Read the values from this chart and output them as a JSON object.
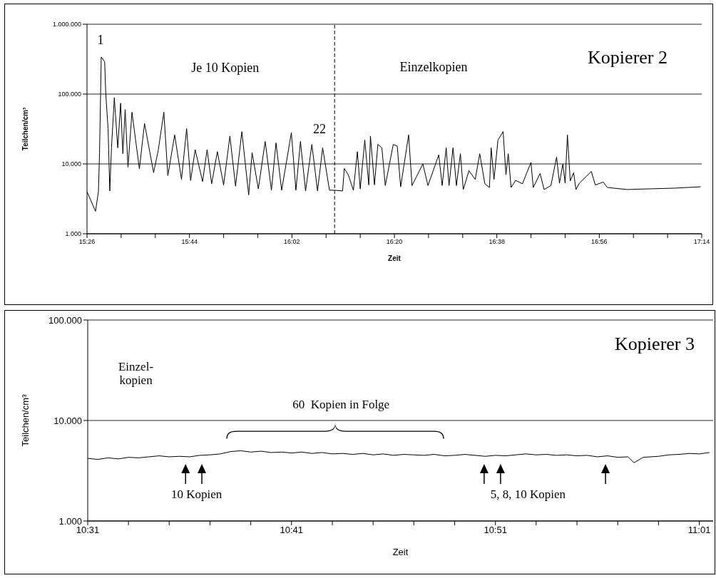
{
  "chart_data": [
    {
      "type": "line",
      "title": "Kopierer 2",
      "xlabel": "Zeit",
      "ylabel": "Teilchen/cm³",
      "color": "#000000",
      "log": "y",
      "grid": "y",
      "xlim": [
        15.4333,
        17.2333
      ],
      "xticks": [
        {
          "value": 15.4333,
          "label": "15:26"
        },
        {
          "value": 15.5333,
          "label": null
        },
        {
          "value": 15.6333,
          "label": null
        },
        {
          "value": 15.7333,
          "label": "15:44"
        },
        {
          "value": 15.8333,
          "label": null
        },
        {
          "value": 15.9333,
          "label": null
        },
        {
          "value": 16.0333,
          "label": "16:02"
        },
        {
          "value": 16.1333,
          "label": null
        },
        {
          "value": 16.2333,
          "label": null
        },
        {
          "value": 16.3333,
          "label": "16:20"
        },
        {
          "value": 16.4333,
          "label": null
        },
        {
          "value": 16.5333,
          "label": null
        },
        {
          "value": 16.6333,
          "label": "16:38"
        },
        {
          "value": 16.7333,
          "label": null
        },
        {
          "value": 16.8333,
          "label": null
        },
        {
          "value": 16.9333,
          "label": "16:56"
        },
        {
          "value": 17.0333,
          "label": null
        },
        {
          "value": 17.1333,
          "label": null
        },
        {
          "value": 17.2333,
          "label": "17:14"
        }
      ],
      "ylim": [
        1000,
        1000000
      ],
      "yticks": [
        {
          "value": 1000,
          "label": "1.000"
        },
        {
          "value": 10000,
          "label": "10.000"
        },
        {
          "value": 100000,
          "label": "100.000"
        },
        {
          "value": 1000000,
          "label": "1.000.000"
        }
      ],
      "ref_lines": [
        {
          "axis": "x",
          "value": 16.1583,
          "line_style": "dashed",
          "color": "#000000"
        }
      ],
      "annotations": [
        "1",
        "Je 10 Kopien",
        "22",
        "Einzelkopien"
      ],
      "x": [
        15.4333,
        15.4583,
        15.4667,
        15.47,
        15.475,
        15.485,
        15.4883,
        15.495,
        15.5,
        15.505,
        15.5133,
        15.5233,
        15.5317,
        15.5383,
        15.545,
        15.5533,
        15.565,
        15.5767,
        15.5867,
        15.6017,
        15.6283,
        15.6417,
        15.6583,
        15.67,
        15.69,
        15.71,
        15.725,
        15.7367,
        15.75,
        15.7717,
        15.785,
        15.7983,
        15.815,
        15.8333,
        15.8517,
        15.8683,
        15.8867,
        15.9067,
        15.9167,
        15.935,
        15.955,
        15.9733,
        15.9867,
        16.0033,
        16.0317,
        16.045,
        16.0583,
        16.0733,
        16.0917,
        16.1083,
        16.1233,
        16.1433,
        16.1583,
        16.1817,
        16.1867,
        16.1983,
        16.2133,
        16.225,
        16.2333,
        16.2467,
        16.2583,
        16.2633,
        16.275,
        16.285,
        16.2967,
        16.3067,
        16.33,
        16.3417,
        16.3517,
        16.375,
        16.385,
        16.4167,
        16.4317,
        16.4633,
        16.4733,
        16.485,
        16.4933,
        16.505,
        16.515,
        16.5267,
        16.535,
        16.5517,
        16.57,
        16.5833,
        16.5983,
        16.6117,
        16.6167,
        16.625,
        16.6367,
        16.6517,
        16.66,
        16.6667,
        16.675,
        16.6883,
        16.7083,
        16.7333,
        16.74,
        16.76,
        16.7717,
        16.7917,
        16.8083,
        16.8167,
        16.8267,
        16.8333,
        16.84,
        16.8483,
        16.8583,
        16.865,
        16.875,
        16.91,
        16.9217,
        16.945,
        16.9567,
        17.015,
        17.0833,
        17.1533,
        17.23
      ],
      "values": [
        4000,
        2100,
        4000,
        14000,
        340000,
        290000,
        100000,
        32000,
        4100,
        17000,
        89000,
        17000,
        74000,
        14000,
        60000,
        9000,
        55000,
        20000,
        8500,
        38000,
        7500,
        15500,
        55000,
        6800,
        26000,
        6000,
        32000,
        5800,
        16000,
        5600,
        16000,
        5200,
        15000,
        5000,
        25000,
        4800,
        29000,
        3600,
        14500,
        4400,
        21000,
        4200,
        20000,
        4200,
        28000,
        4200,
        21000,
        4100,
        19000,
        4100,
        17000,
        4200,
        4200,
        4100,
        8600,
        7000,
        4200,
        15000,
        4400,
        22000,
        5000,
        25000,
        5000,
        19000,
        17000,
        4900,
        19000,
        18000,
        4700,
        26000,
        4900,
        10000,
        4900,
        13500,
        4900,
        17000,
        4900,
        17000,
        4900,
        14000,
        4300,
        8000,
        6000,
        14000,
        5200,
        4600,
        17000,
        6000,
        22000,
        29000,
        7000,
        14000,
        4600,
        5800,
        5200,
        10500,
        4600,
        7300,
        4300,
        4900,
        12500,
        5300,
        10000,
        5300,
        26000,
        5700,
        7500,
        4300,
        5300,
        7800,
        5000,
        5500,
        4600,
        4300,
        4400,
        4500,
        4700
      ]
    },
    {
      "type": "line",
      "title": "Kopierer 3",
      "xlabel": "Zeit",
      "ylabel": "Teilchen/cm³",
      "color": "#000000",
      "log": "y",
      "grid": "y",
      "xlim": [
        10.5167,
        11.028
      ],
      "xticks": [
        {
          "value": 10.5167,
          "label": "10:31"
        },
        {
          "value": 10.55,
          "label": null
        },
        {
          "value": 10.5833,
          "label": null
        },
        {
          "value": 10.6167,
          "label": null
        },
        {
          "value": 10.65,
          "label": null
        },
        {
          "value": 10.6833,
          "label": "10:41"
        },
        {
          "value": 10.7167,
          "label": null
        },
        {
          "value": 10.75,
          "label": null
        },
        {
          "value": 10.7833,
          "label": null
        },
        {
          "value": 10.8167,
          "label": null
        },
        {
          "value": 10.85,
          "label": "10:51"
        },
        {
          "value": 10.8833,
          "label": null
        },
        {
          "value": 10.9167,
          "label": null
        },
        {
          "value": 10.95,
          "label": null
        },
        {
          "value": 10.9833,
          "label": null
        },
        {
          "value": 11.0167,
          "label": "11:01"
        }
      ],
      "ylim": [
        1000,
        100000
      ],
      "yticks": [
        {
          "value": 1000,
          "label": "1.000"
        },
        {
          "value": 10000,
          "label": "10.000"
        },
        {
          "value": 100000,
          "label": "100.000"
        }
      ],
      "annotations": [
        "Einzel-\nkopien",
        "60  Kopien in Folge",
        "10 Kopien",
        "5, 8, 10 Kopien"
      ],
      "x": [
        10.5167,
        10.525,
        10.5333,
        10.5417,
        10.55,
        10.5583,
        10.5667,
        10.575,
        10.5833,
        10.5917,
        10.6,
        10.6083,
        10.6167,
        10.625,
        10.6333,
        10.6417,
        10.65,
        10.6583,
        10.6667,
        10.675,
        10.6833,
        10.6917,
        10.7,
        10.7083,
        10.7167,
        10.725,
        10.7333,
        10.7417,
        10.75,
        10.7583,
        10.7667,
        10.775,
        10.7833,
        10.7917,
        10.8,
        10.8083,
        10.8167,
        10.825,
        10.8333,
        10.8417,
        10.85,
        10.8583,
        10.8667,
        10.875,
        10.8833,
        10.8917,
        10.9,
        10.9083,
        10.9167,
        10.925,
        10.9333,
        10.9417,
        10.95,
        10.9583,
        10.9633,
        10.9708,
        10.9833,
        10.9917,
        11.0,
        11.0083,
        11.0167,
        11.025
      ],
      "values": [
        4200,
        4100,
        4250,
        4150,
        4300,
        4250,
        4350,
        4450,
        4350,
        4400,
        4350,
        4500,
        4550,
        4650,
        4900,
        5000,
        4850,
        4950,
        4800,
        4850,
        4750,
        4850,
        4700,
        4800,
        4650,
        4700,
        4600,
        4700,
        4550,
        4650,
        4500,
        4600,
        4550,
        4500,
        4600,
        4450,
        4500,
        4600,
        4500,
        4400,
        4500,
        4450,
        4550,
        4650,
        4550,
        4600,
        4500,
        4550,
        4450,
        4500,
        4350,
        4450,
        4300,
        4350,
        3800,
        4300,
        4400,
        4550,
        4600,
        4700,
        4650,
        4800
      ]
    }
  ]
}
